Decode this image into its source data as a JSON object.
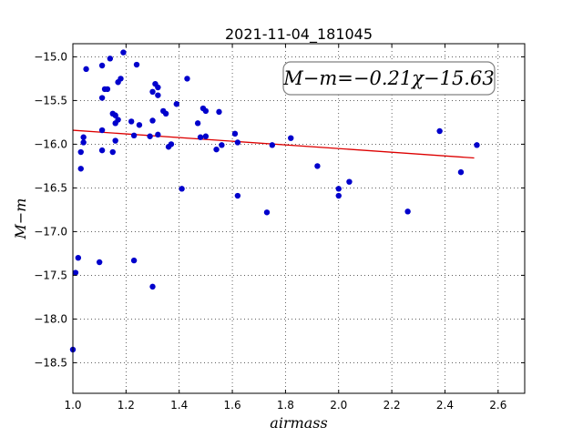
{
  "chart_data": {
    "type": "scatter",
    "title": "2021-11-04_181045",
    "xlabel": "airmass",
    "ylabel": "M−m",
    "xlim": [
      1.0,
      2.7
    ],
    "ylim": [
      -18.85,
      -14.85
    ],
    "x_ticks": [
      "1.0",
      "1.2",
      "1.4",
      "1.6",
      "1.8",
      "2.0",
      "2.2",
      "2.4",
      "2.6"
    ],
    "y_ticks": [
      "−15.0",
      "−15.5",
      "−16.0",
      "−16.5",
      "−17.0",
      "−17.5",
      "−18.0",
      "−18.5"
    ],
    "grid": true,
    "annotation": "M−m=−0.21χ−15.63",
    "annotation_position": "top-right",
    "point_color": "#0000cc",
    "fit_color": "#dd0000",
    "fit": {
      "slope": -0.21,
      "intercept": -15.63,
      "x_range": [
        1.0,
        2.51
      ]
    },
    "points": [
      {
        "x": 1.0,
        "y": -18.35
      },
      {
        "x": 1.01,
        "y": -17.47
      },
      {
        "x": 1.02,
        "y": -17.3
      },
      {
        "x": 1.03,
        "y": -16.28
      },
      {
        "x": 1.03,
        "y": -16.09
      },
      {
        "x": 1.04,
        "y": -15.92
      },
      {
        "x": 1.04,
        "y": -15.98
      },
      {
        "x": 1.05,
        "y": -15.14
      },
      {
        "x": 1.1,
        "y": -17.35
      },
      {
        "x": 1.11,
        "y": -15.1
      },
      {
        "x": 1.11,
        "y": -15.47
      },
      {
        "x": 1.11,
        "y": -15.84
      },
      {
        "x": 1.11,
        "y": -16.07
      },
      {
        "x": 1.12,
        "y": -15.37
      },
      {
        "x": 1.13,
        "y": -15.37
      },
      {
        "x": 1.14,
        "y": -15.02
      },
      {
        "x": 1.15,
        "y": -16.09
      },
      {
        "x": 1.15,
        "y": -15.65
      },
      {
        "x": 1.16,
        "y": -15.76
      },
      {
        "x": 1.16,
        "y": -15.96
      },
      {
        "x": 1.16,
        "y": -15.67
      },
      {
        "x": 1.17,
        "y": -15.72
      },
      {
        "x": 1.17,
        "y": -15.29
      },
      {
        "x": 1.18,
        "y": -15.25
      },
      {
        "x": 1.19,
        "y": -14.95
      },
      {
        "x": 1.22,
        "y": -15.74
      },
      {
        "x": 1.23,
        "y": -17.33
      },
      {
        "x": 1.23,
        "y": -15.9
      },
      {
        "x": 1.24,
        "y": -15.09
      },
      {
        "x": 1.25,
        "y": -15.78
      },
      {
        "x": 1.29,
        "y": -15.91
      },
      {
        "x": 1.3,
        "y": -17.63
      },
      {
        "x": 1.3,
        "y": -15.4
      },
      {
        "x": 1.3,
        "y": -15.73
      },
      {
        "x": 1.31,
        "y": -15.31
      },
      {
        "x": 1.32,
        "y": -15.35
      },
      {
        "x": 1.32,
        "y": -15.44
      },
      {
        "x": 1.32,
        "y": -15.89
      },
      {
        "x": 1.34,
        "y": -15.62
      },
      {
        "x": 1.35,
        "y": -15.65
      },
      {
        "x": 1.36,
        "y": -16.03
      },
      {
        "x": 1.37,
        "y": -16.0
      },
      {
        "x": 1.39,
        "y": -15.54
      },
      {
        "x": 1.41,
        "y": -16.51
      },
      {
        "x": 1.43,
        "y": -15.25
      },
      {
        "x": 1.47,
        "y": -15.76
      },
      {
        "x": 1.48,
        "y": -15.92
      },
      {
        "x": 1.49,
        "y": -15.59
      },
      {
        "x": 1.5,
        "y": -15.62
      },
      {
        "x": 1.5,
        "y": -15.91
      },
      {
        "x": 1.54,
        "y": -16.06
      },
      {
        "x": 1.55,
        "y": -15.63
      },
      {
        "x": 1.56,
        "y": -16.01
      },
      {
        "x": 1.61,
        "y": -15.88
      },
      {
        "x": 1.62,
        "y": -15.98
      },
      {
        "x": 1.62,
        "y": -16.59
      },
      {
        "x": 1.73,
        "y": -16.78
      },
      {
        "x": 1.75,
        "y": -16.01
      },
      {
        "x": 1.82,
        "y": -15.93
      },
      {
        "x": 1.92,
        "y": -16.25
      },
      {
        "x": 2.0,
        "y": -16.51
      },
      {
        "x": 2.0,
        "y": -16.59
      },
      {
        "x": 2.04,
        "y": -16.43
      },
      {
        "x": 2.26,
        "y": -16.77
      },
      {
        "x": 2.38,
        "y": -15.85
      },
      {
        "x": 2.46,
        "y": -16.32
      },
      {
        "x": 2.52,
        "y": -16.01
      }
    ]
  }
}
